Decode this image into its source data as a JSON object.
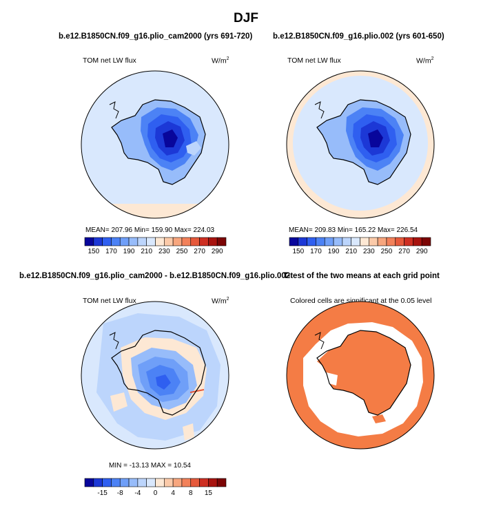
{
  "figure": {
    "title": "DJF",
    "panels": [
      {
        "id": "p1",
        "title": "b.e12.B1850CN.f09_g16.plio_cam2000 (yrs 691-720)",
        "variable": "TOM net LW flux",
        "units_base": "W/m",
        "units_exp": "2",
        "stats": "MEAN= 207.96   Min= 159.90   Max= 224.03"
      },
      {
        "id": "p2",
        "title": "b.e12.B1850CN.f09_g16.plio.002 (yrs 601-650)",
        "variable": "TOM net LW flux",
        "units_base": "W/m",
        "units_exp": "2",
        "stats": "MEAN= 209.83   Min= 165.22   Max= 226.54"
      },
      {
        "id": "p3",
        "title": "b.e12.B1850CN.f09_g16.plio_cam2000 - b.e12.B1850CN.f09_g16.plio.002",
        "variable": "TOM net LW flux",
        "units_base": "W/m",
        "units_exp": "2",
        "stats": "MIN = -13.13  MAX =  10.54"
      },
      {
        "id": "p4",
        "title": "T-test of the two means at each grid point",
        "subtitle": "Colored cells are significant at the 0.05 level"
      }
    ],
    "colorbar_abs": {
      "colors": [
        "#08069b",
        "#1c38d6",
        "#2f5ff0",
        "#4c82f5",
        "#6f9ff8",
        "#97bcfa",
        "#bcd5fc",
        "#d9e8fd",
        "#fde8d4",
        "#fbcaa9",
        "#f7a67e",
        "#f2815a",
        "#e6593b",
        "#ce2f22",
        "#a8130f",
        "#7c0505"
      ],
      "tick_labels": [
        "150",
        "170",
        "190",
        "210",
        "230",
        "250",
        "270",
        "290"
      ]
    },
    "colorbar_diff": {
      "colors": [
        "#08069b",
        "#1c38d6",
        "#2f5ff0",
        "#4c82f5",
        "#6f9ff8",
        "#97bcfa",
        "#bcd5fc",
        "#d9e8fd",
        "#fde8d4",
        "#fbcaa9",
        "#f7a67e",
        "#f2815a",
        "#e6593b",
        "#ce2f22",
        "#a8130f",
        "#7c0505"
      ],
      "tick_labels": [
        "-15",
        "-8",
        "-4",
        "0",
        "4",
        "8",
        "15"
      ]
    },
    "colors": {
      "ocean_light": "#d9e8fd",
      "ocean_warm": "#fde8d4",
      "signif": "#f47c45"
    }
  }
}
